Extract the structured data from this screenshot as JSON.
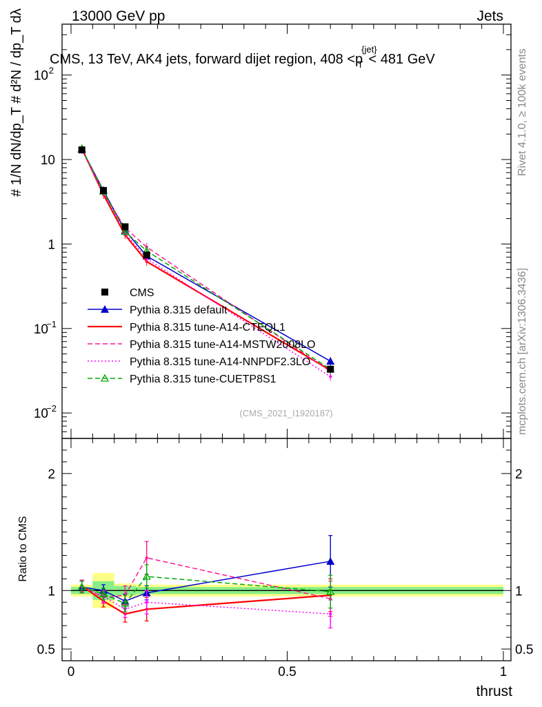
{
  "header": {
    "left": "13000 GeV pp",
    "right": "Jets"
  },
  "side_text": {
    "rivet": "Rivet 4.1.0, ≥ 100k events",
    "mcplots": "mcplots.cern.ch [arXiv:1306.3436]"
  },
  "chart_data": {
    "type": "line",
    "title": "CMS, 13 TeV, AK4 jets, forward dijet region, 408 <p",
    "title_sup": "{jet}",
    "title_sub": "T",
    "title_tail": "< 481 GeV",
    "watermark": "(CMS_2021_I1920187)",
    "xlabel": "thrust",
    "ylabel_main": "1/N dN/dp_T d²N/dp_T dλ",
    "ylabel_ratio": "Ratio to CMS",
    "xlim": [
      0,
      1
    ],
    "ylim_main": [
      0.005,
      400
    ],
    "ylim_ratio": [
      0.4,
      2.3
    ],
    "x_ticks": [
      "0",
      "0.5",
      "1"
    ],
    "y_ticks_main": [
      "10",
      "1"
    ],
    "y_ticks_ratio": [
      "2",
      "1",
      "0.5"
    ],
    "x": [
      0.025,
      0.075,
      0.125,
      0.175,
      0.6
    ],
    "x_bins": [
      [
        0.0,
        0.05
      ],
      [
        0.05,
        0.1
      ],
      [
        0.1,
        0.15
      ],
      [
        0.15,
        0.2
      ],
      [
        0.2,
        1.0
      ]
    ],
    "data": {
      "name": "CMS",
      "values": [
        13.0,
        4.3,
        1.6,
        0.74,
        0.033
      ],
      "band_inner": [
        0.03,
        0.08,
        0.04,
        0.03,
        0.03
      ],
      "band_outer": [
        0.05,
        0.15,
        0.06,
        0.05,
        0.05
      ]
    },
    "series": [
      {
        "name": "Pythia 8.315 default",
        "style": "solid",
        "marker": "triangle",
        "color": "#0000cc",
        "values": [
          13.3,
          4.3,
          1.45,
          0.72,
          0.041
        ],
        "ratio": [
          1.03,
          1.0,
          0.91,
          0.98,
          1.25
        ],
        "ratio_err": [
          0.05,
          0.05,
          0.06,
          0.06,
          0.22
        ]
      },
      {
        "name": "Pythia 8.315 tune-A14-CTEQL1",
        "style": "solid",
        "marker": "none",
        "color": "#ff0000",
        "values": [
          13.5,
          3.85,
          1.28,
          0.62,
          0.032
        ],
        "ratio": [
          1.04,
          0.91,
          0.8,
          0.84,
          0.96
        ],
        "ratio_err": [
          0.05,
          0.05,
          0.07,
          0.1,
          0.14
        ]
      },
      {
        "name": "Pythia 8.315 tune-A14-MSTW2008LO",
        "style": "dashed",
        "marker": "none",
        "color": "#ff1493",
        "values": [
          13.2,
          4.05,
          1.55,
          0.92,
          0.031
        ],
        "ratio": [
          1.04,
          0.94,
          0.96,
          1.28,
          0.93
        ],
        "ratio_err": [
          0.05,
          0.05,
          0.08,
          0.14,
          0.15
        ]
      },
      {
        "name": "Pythia 8.315 tune-A14-NNPDF2.3LO",
        "style": "dotted",
        "marker": "none",
        "color": "#ff00ff",
        "values": [
          13.1,
          4.1,
          1.35,
          0.67,
          0.027
        ],
        "ratio": [
          1.03,
          0.95,
          0.84,
          0.9,
          0.8
        ],
        "ratio_err": [
          0.05,
          0.05,
          0.07,
          0.1,
          0.12
        ]
      },
      {
        "name": "Pythia 8.315 tune-CUETP8S1",
        "style": "dashed",
        "marker": "open-triangle",
        "color": "#00aa00",
        "values": [
          13.4,
          4.2,
          1.4,
          0.83,
          0.033
        ],
        "ratio": [
          1.03,
          0.97,
          0.89,
          1.12,
          0.99
        ],
        "ratio_err": [
          0.05,
          0.05,
          0.07,
          0.1,
          0.14
        ]
      }
    ]
  }
}
